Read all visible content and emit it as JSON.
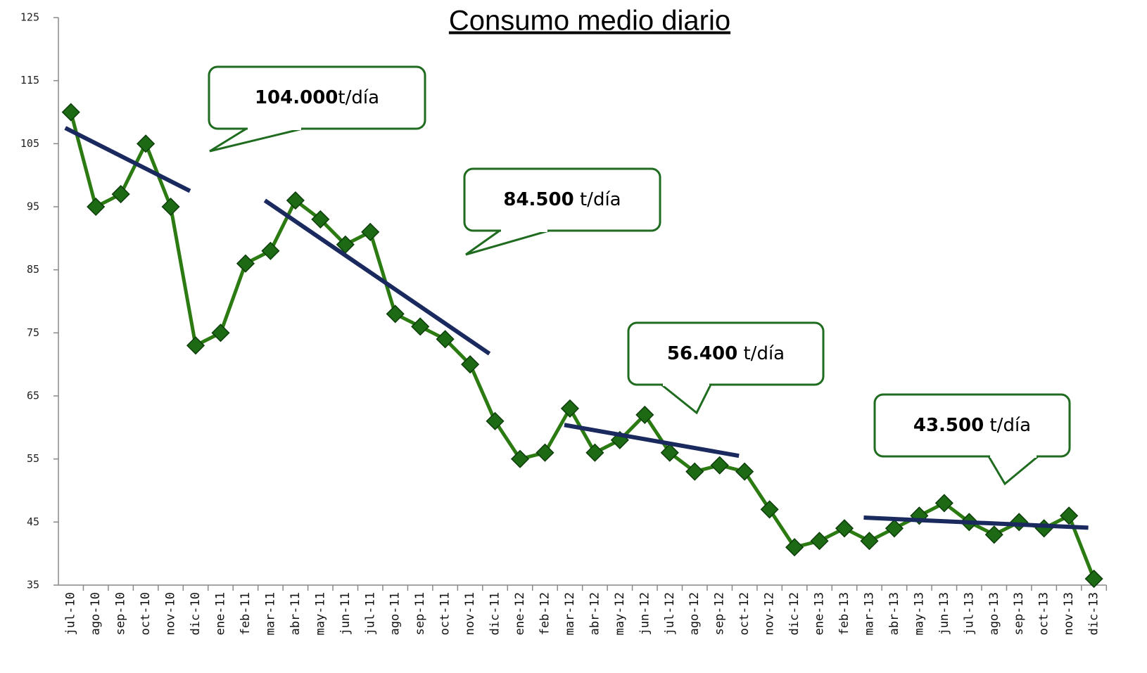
{
  "chart_data": {
    "type": "line",
    "title": "Consumo medio diario",
    "categories": [
      "jul-10",
      "ago-10",
      "sep-10",
      "oct-10",
      "nov-10",
      "dic-10",
      "ene-11",
      "feb-11",
      "mar-11",
      "abr-11",
      "may-11",
      "jun-11",
      "jul-11",
      "ago-11",
      "sep-11",
      "oct-11",
      "nov-11",
      "dic-11",
      "ene-12",
      "feb-12",
      "mar-12",
      "abr-12",
      "may-12",
      "jun-12",
      "jul-12",
      "ago-12",
      "sep-12",
      "oct-12",
      "nov-12",
      "dic-12",
      "ene-13",
      "feb-13",
      "mar-13",
      "abr-13",
      "may-13",
      "jun-13",
      "jul-13",
      "ago-13",
      "sep-13",
      "oct-13",
      "nov-13",
      "dic-13"
    ],
    "series": [
      {
        "color": "#2b7a12",
        "values": [
          110,
          95,
          97,
          105,
          95,
          73,
          75,
          86,
          88,
          96,
          93,
          89,
          91,
          78,
          76,
          74,
          70,
          61,
          55,
          56,
          63,
          56,
          58,
          62,
          56,
          53,
          54,
          53,
          47,
          41,
          42,
          44,
          42,
          44,
          46,
          48,
          45,
          43,
          45,
          44,
          46,
          36
        ]
      }
    ],
    "ylim": [
      35,
      125
    ],
    "yticks": [
      35,
      45,
      55,
      65,
      75,
      85,
      95,
      105,
      115,
      125
    ],
    "trend_lines": {
      "color": "#1a2a5e",
      "lines": [
        {
          "start": "jul-10",
          "end": "dic-10",
          "values": [
            107.5,
            97.5
          ]
        },
        {
          "start": "mar-11",
          "end": "dic-11",
          "values": [
            96,
            71.7
          ]
        },
        {
          "start": "mar-12",
          "end": "oct-12",
          "values": [
            60.4,
            55.5
          ]
        },
        {
          "start": "mar-13",
          "end": "dic-13",
          "values": [
            45.7,
            44.1
          ]
        }
      ]
    },
    "annotations": [
      {
        "bold": "104.000",
        "rest": "t/día"
      },
      {
        "bold": "84.500",
        "rest": " t/día"
      },
      {
        "bold": "56.400",
        "rest": " t/día"
      },
      {
        "bold": "43.500",
        "rest": " t/día"
      }
    ]
  }
}
